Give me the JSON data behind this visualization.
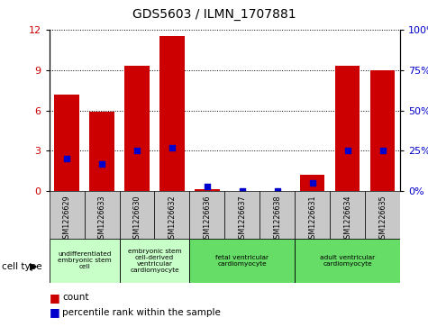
{
  "title": "GDS5603 / ILMN_1707881",
  "samples": [
    "GSM1226629",
    "GSM1226633",
    "GSM1226630",
    "GSM1226632",
    "GSM1226636",
    "GSM1226637",
    "GSM1226638",
    "GSM1226631",
    "GSM1226634",
    "GSM1226635"
  ],
  "counts": [
    7.2,
    5.9,
    9.3,
    11.5,
    0.15,
    0.05,
    0.05,
    1.2,
    9.3,
    9.0
  ],
  "percentiles": [
    20,
    17,
    25,
    27,
    3,
    0,
    0,
    5,
    25,
    25
  ],
  "ylim_left": [
    0,
    12
  ],
  "ylim_right": [
    0,
    100
  ],
  "yticks_left": [
    0,
    3,
    6,
    9,
    12
  ],
  "yticks_right": [
    0,
    25,
    50,
    75,
    100
  ],
  "ytick_right_labels": [
    "0%",
    "25%",
    "50%",
    "75%",
    "100%"
  ],
  "cell_type_groups": [
    {
      "label": "undifferentiated\nembryonic stem\ncell",
      "start": 0,
      "end": 2,
      "color": "#c8ffc8"
    },
    {
      "label": "embryonic stem\ncell-derived\nventricular\ncardiomyocyte",
      "start": 2,
      "end": 4,
      "color": "#c8ffc8"
    },
    {
      "label": "fetal ventricular\ncardiomyocyte",
      "start": 4,
      "end": 7,
      "color": "#66dd66"
    },
    {
      "label": "adult ventricular\ncardiomyocyte",
      "start": 7,
      "end": 10,
      "color": "#66dd66"
    }
  ],
  "bar_color": "#cc0000",
  "percentile_color": "#0000cc",
  "tick_bg": "#c8c8c8",
  "cell_type_label": "cell type",
  "legend_count": "count",
  "legend_percentile": "percentile rank within the sample"
}
